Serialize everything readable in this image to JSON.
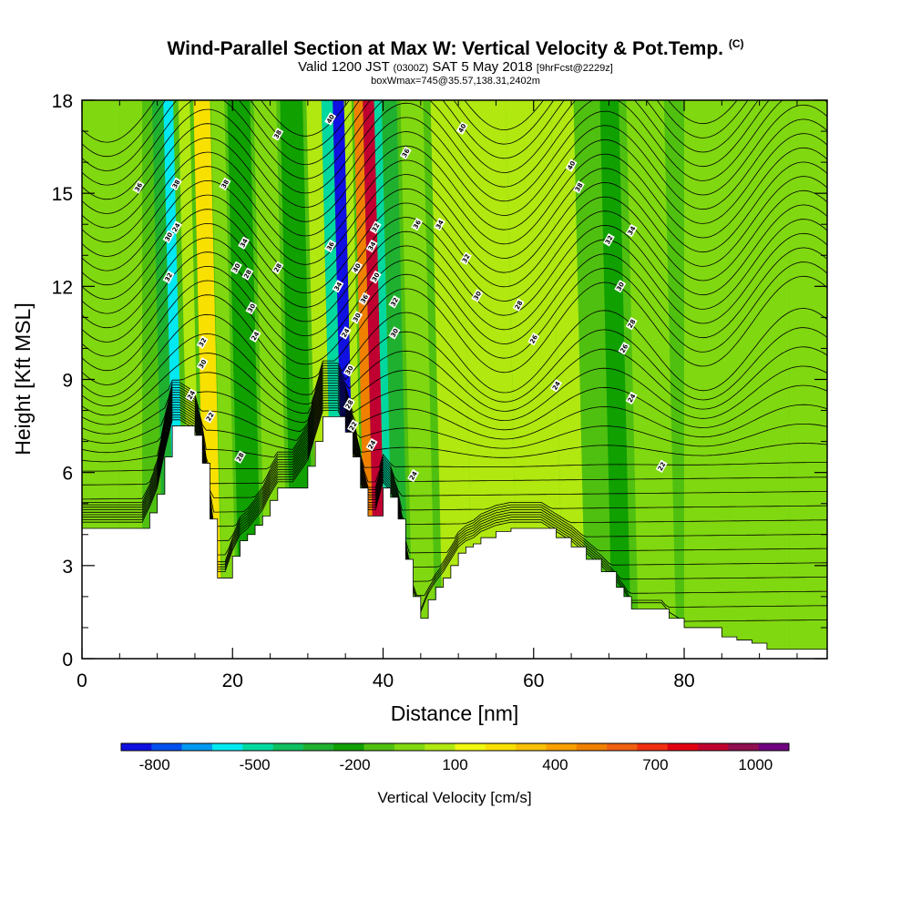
{
  "header": {
    "title": "Wind-Parallel Section at Max W: Vertical Velocity & Pot.Temp.",
    "title_tag": "(C)",
    "valid_main": "Valid 1200 JST",
    "valid_zulu": "(0300Z)",
    "valid_date": "SAT 5 May 2018",
    "forecast_info": "[9hrFcst@2229z]",
    "box_info": "boxWmax=745@35.57,138.31,2402m"
  },
  "chart_data": {
    "type": "heatmap",
    "title": "Wind-Parallel Section at Max W: Vertical Velocity & Pot.Temp.",
    "xlabel": "Distance [nm]",
    "ylabel": "Height [Kft MSL]",
    "xlim": [
      0,
      99
    ],
    "ylim": [
      0,
      18
    ],
    "x_ticks": [
      0,
      20,
      40,
      60,
      80
    ],
    "y_ticks": [
      0,
      3,
      6,
      9,
      12,
      15,
      18
    ],
    "x_tick_labels": [
      "0",
      "20",
      "40",
      "60",
      "80"
    ],
    "y_tick_labels": [
      "0",
      "3",
      "6",
      "9",
      "12",
      "15",
      "18"
    ],
    "grid": false,
    "colorbar": {
      "title": "Vertical Velocity [cm/s]",
      "labels": [
        "-800",
        "-500",
        "-200",
        "100",
        "400",
        "700",
        "1000"
      ],
      "label_values": [
        -800,
        -500,
        -200,
        100,
        400,
        700,
        1000
      ],
      "min": -900,
      "max": 1100,
      "step": 100,
      "colors": [
        "#1010e0",
        "#0050f0",
        "#0098f0",
        "#00e8f0",
        "#00d8a0",
        "#10c060",
        "#20b030",
        "#10a000",
        "#50c010",
        "#80d810",
        "#b0e810",
        "#f0f810",
        "#f8e000",
        "#f8c000",
        "#f8a000",
        "#f08000",
        "#f06010",
        "#f03010",
        "#e00010",
        "#c00030",
        "#901050",
        "#700080"
      ]
    },
    "terrain_height": {
      "x": [
        0,
        8,
        9,
        10,
        11,
        12,
        13,
        15,
        16,
        17,
        18,
        19,
        20,
        21,
        22,
        23,
        24,
        25,
        26,
        28,
        30,
        31,
        32,
        34,
        35,
        36,
        37,
        38,
        39,
        40,
        41,
        42,
        43,
        44,
        45,
        46,
        47,
        48,
        49,
        50,
        51,
        52,
        53,
        55,
        57,
        59,
        61,
        63,
        65,
        67,
        69,
        71,
        72,
        73,
        75,
        77,
        78,
        80,
        82,
        85,
        87,
        89,
        91,
        93,
        95,
        99
      ],
      "y": [
        4.2,
        4.2,
        4.7,
        5.3,
        6.5,
        7.5,
        7.5,
        7.2,
        6.3,
        4.5,
        2.6,
        2.6,
        3.3,
        3.8,
        4.0,
        4.3,
        4.6,
        5.1,
        5.5,
        5.5,
        6.2,
        7.0,
        7.8,
        7.8,
        7.3,
        6.5,
        5.5,
        4.6,
        4.6,
        5.5,
        5.2,
        4.5,
        3.2,
        2.0,
        1.3,
        1.9,
        2.3,
        2.6,
        3.0,
        3.4,
        3.6,
        3.7,
        3.9,
        4.1,
        4.2,
        4.2,
        4.2,
        3.9,
        3.6,
        3.2,
        2.8,
        2.3,
        2.0,
        1.6,
        1.6,
        1.6,
        1.3,
        1.0,
        1.0,
        0.7,
        0.6,
        0.5,
        0.3,
        0.3,
        0.3,
        0.3
      ]
    },
    "velocity_bands": [
      {
        "x": 0,
        "w": 5,
        "v": 50
      },
      {
        "x": 5,
        "w": 3,
        "v": 0
      },
      {
        "x": 11,
        "w": 2,
        "v": -300
      },
      {
        "x": 12.5,
        "w": 1.3,
        "v": -550
      },
      {
        "x": 14.5,
        "w": 1.5,
        "v": 150
      },
      {
        "x": 16.5,
        "w": 2.2,
        "v": 350
      },
      {
        "x": 18.8,
        "w": 1.8,
        "v": 0
      },
      {
        "x": 21,
        "w": 3,
        "v": -150
      },
      {
        "x": 24.5,
        "w": 3,
        "v": 50
      },
      {
        "x": 28,
        "w": 3,
        "v": -150
      },
      {
        "x": 31.5,
        "w": 2,
        "v": 150
      },
      {
        "x": 33.5,
        "w": 1.5,
        "v": -500
      },
      {
        "x": 35,
        "w": 1.5,
        "v": -850
      },
      {
        "x": 36.5,
        "w": 1,
        "v": 100
      },
      {
        "x": 37.8,
        "w": 1.2,
        "v": 650
      },
      {
        "x": 39,
        "w": 1.5,
        "v": 1000
      },
      {
        "x": 40.5,
        "w": 1,
        "v": -500
      },
      {
        "x": 41.5,
        "w": 2,
        "v": -300
      },
      {
        "x": 44,
        "w": 3,
        "v": 0
      },
      {
        "x": 48,
        "w": 4,
        "v": 100
      },
      {
        "x": 52,
        "w": 6,
        "v": 150
      },
      {
        "x": 58,
        "w": 6,
        "v": 100
      },
      {
        "x": 64,
        "w": 3,
        "v": 150
      },
      {
        "x": 67,
        "w": 3,
        "v": -100
      },
      {
        "x": 70.5,
        "w": 2.5,
        "v": -150
      },
      {
        "x": 74,
        "w": 5,
        "v": 50
      },
      {
        "x": 80,
        "w": 6,
        "v": 0
      },
      {
        "x": 86,
        "w": 8,
        "v": 50
      },
      {
        "x": 94,
        "w": 5,
        "v": 0
      }
    ],
    "theta_contour_labels": [
      {
        "x": 7.5,
        "y": 15.2,
        "text": "36"
      },
      {
        "x": 11.5,
        "y": 13.6,
        "text": "30"
      },
      {
        "x": 12.5,
        "y": 15.3,
        "text": "38"
      },
      {
        "x": 11.5,
        "y": 12.3,
        "text": "32"
      },
      {
        "x": 12.5,
        "y": 13.9,
        "text": "24"
      },
      {
        "x": 19,
        "y": 15.3,
        "text": "38"
      },
      {
        "x": 21.5,
        "y": 13.4,
        "text": "34"
      },
      {
        "x": 20.5,
        "y": 12.6,
        "text": "30"
      },
      {
        "x": 22,
        "y": 12.4,
        "text": "28"
      },
      {
        "x": 26,
        "y": 12.6,
        "text": "28"
      },
      {
        "x": 26,
        "y": 16.9,
        "text": "38"
      },
      {
        "x": 22.5,
        "y": 11.3,
        "text": "30"
      },
      {
        "x": 23,
        "y": 10.4,
        "text": "24"
      },
      {
        "x": 16,
        "y": 10.2,
        "text": "32"
      },
      {
        "x": 16,
        "y": 9.5,
        "text": "30"
      },
      {
        "x": 14.5,
        "y": 8.5,
        "text": "24"
      },
      {
        "x": 17,
        "y": 7.8,
        "text": "22"
      },
      {
        "x": 21,
        "y": 6.5,
        "text": "28"
      },
      {
        "x": 33,
        "y": 17.4,
        "text": "40"
      },
      {
        "x": 33,
        "y": 13.3,
        "text": "36"
      },
      {
        "x": 34,
        "y": 12,
        "text": "34"
      },
      {
        "x": 36.5,
        "y": 12.6,
        "text": "40"
      },
      {
        "x": 37.5,
        "y": 11.6,
        "text": "36"
      },
      {
        "x": 36.5,
        "y": 11,
        "text": "30"
      },
      {
        "x": 35,
        "y": 10.5,
        "text": "24"
      },
      {
        "x": 35.5,
        "y": 9.3,
        "text": "30"
      },
      {
        "x": 35.5,
        "y": 8.2,
        "text": "28"
      },
      {
        "x": 36,
        "y": 7.5,
        "text": "22"
      },
      {
        "x": 38.5,
        "y": 6.9,
        "text": "24"
      },
      {
        "x": 39,
        "y": 13.9,
        "text": "32"
      },
      {
        "x": 38.5,
        "y": 13.3,
        "text": "34"
      },
      {
        "x": 39,
        "y": 12.3,
        "text": "30"
      },
      {
        "x": 41.5,
        "y": 11.5,
        "text": "32"
      },
      {
        "x": 41.5,
        "y": 10.5,
        "text": "30"
      },
      {
        "x": 43,
        "y": 16.3,
        "text": "36"
      },
      {
        "x": 44.5,
        "y": 14,
        "text": "36"
      },
      {
        "x": 47.5,
        "y": 14,
        "text": "34"
      },
      {
        "x": 50.5,
        "y": 17.1,
        "text": "40"
      },
      {
        "x": 51,
        "y": 12.9,
        "text": "32"
      },
      {
        "x": 52.5,
        "y": 11.7,
        "text": "30"
      },
      {
        "x": 44,
        "y": 5.9,
        "text": "24"
      },
      {
        "x": 58,
        "y": 11.4,
        "text": "28"
      },
      {
        "x": 60,
        "y": 10.3,
        "text": "26"
      },
      {
        "x": 63,
        "y": 8.8,
        "text": "24"
      },
      {
        "x": 65,
        "y": 15.9,
        "text": "40"
      },
      {
        "x": 66,
        "y": 15.2,
        "text": "38"
      },
      {
        "x": 70,
        "y": 13.5,
        "text": "32"
      },
      {
        "x": 73,
        "y": 13.8,
        "text": "34"
      },
      {
        "x": 71.5,
        "y": 12,
        "text": "30"
      },
      {
        "x": 73,
        "y": 10.8,
        "text": "28"
      },
      {
        "x": 72,
        "y": 10,
        "text": "26"
      },
      {
        "x": 73,
        "y": 8.4,
        "text": "24"
      },
      {
        "x": 77,
        "y": 6.2,
        "text": "22"
      }
    ]
  }
}
